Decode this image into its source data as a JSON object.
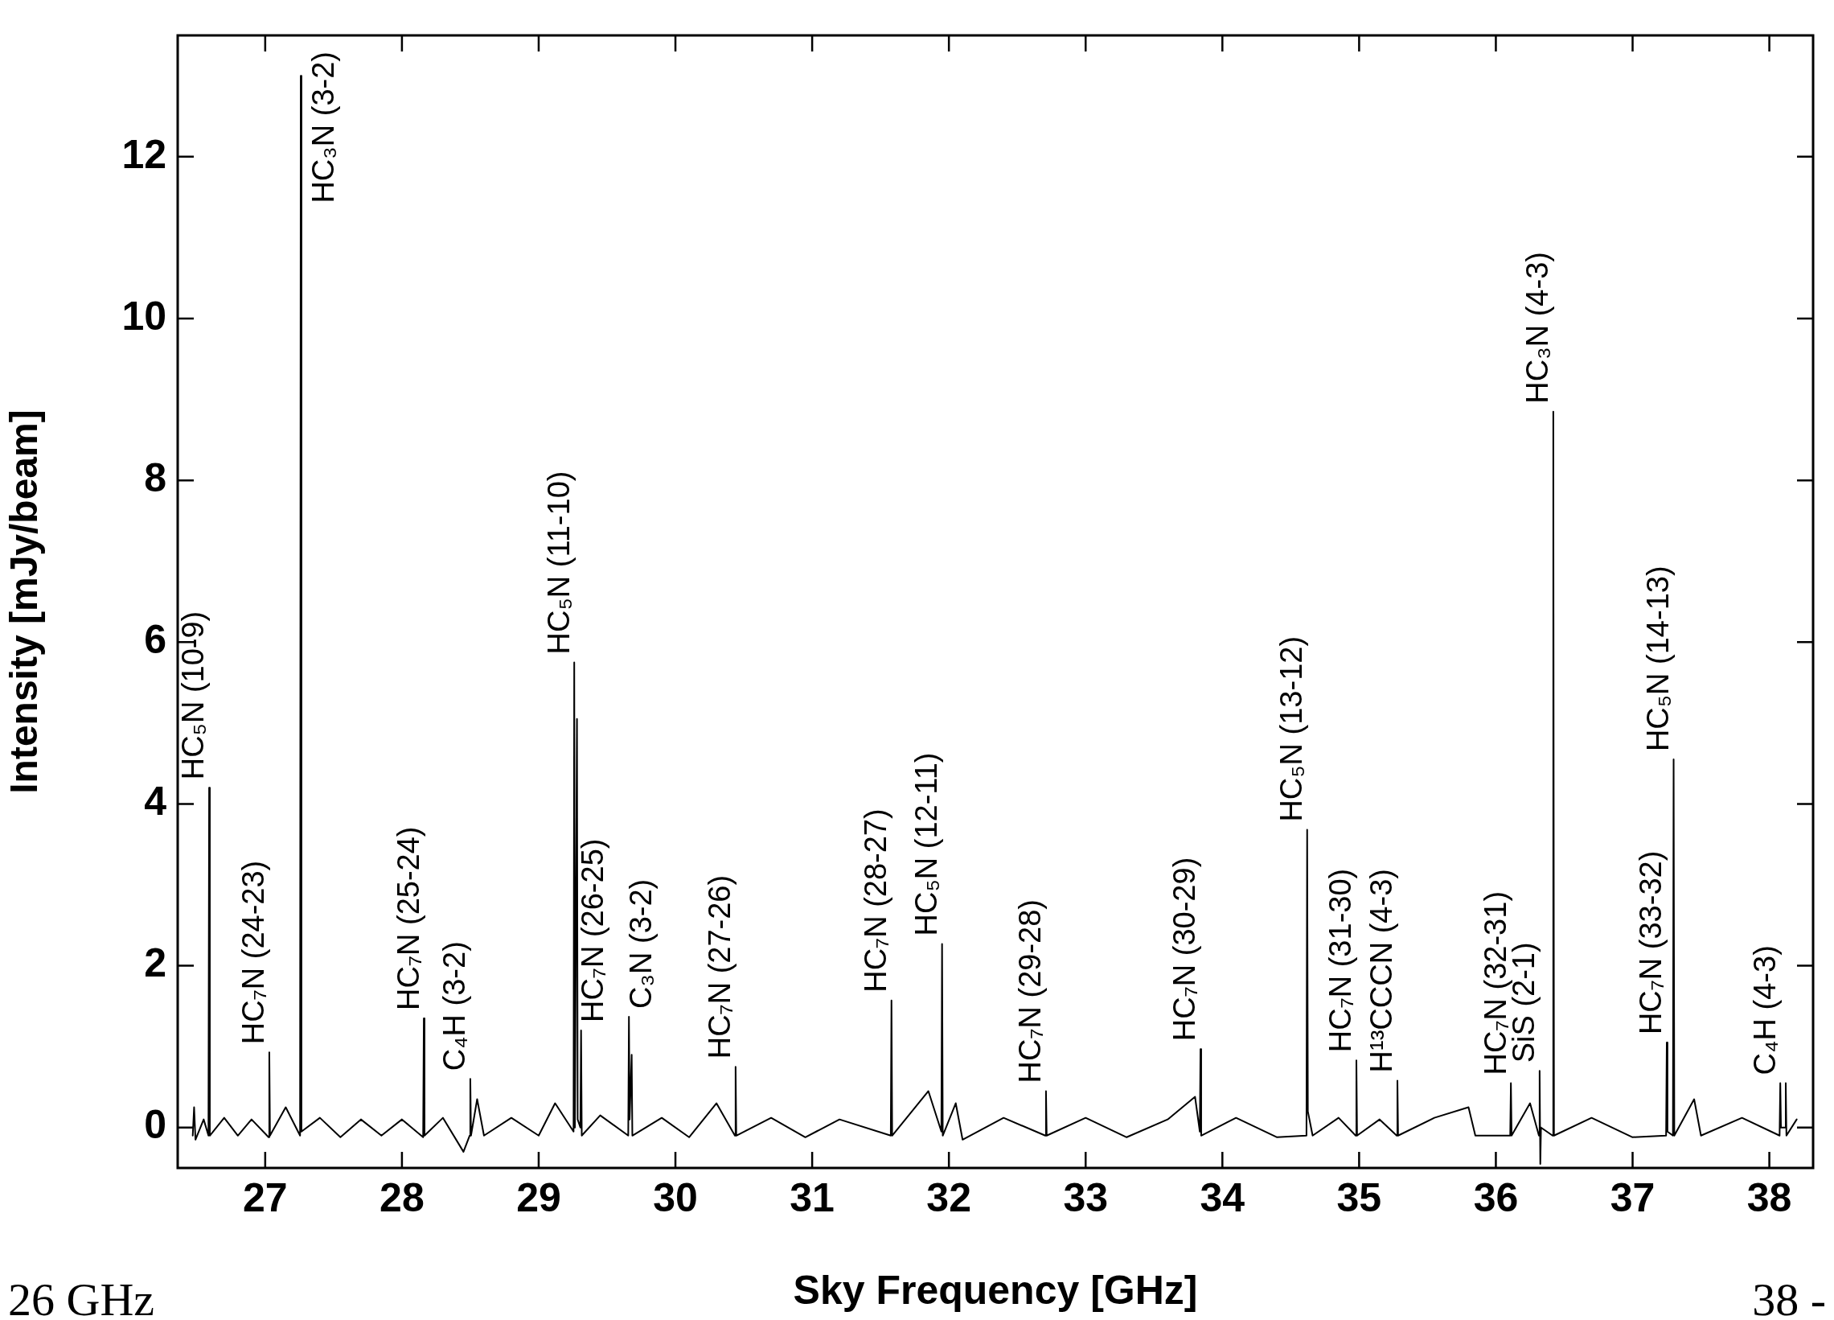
{
  "chart_data": {
    "type": "line",
    "xlabel": "Sky Frequency [GHz]",
    "ylabel": "Intensity [mJy/beam]",
    "color": "#000000",
    "xlim": [
      26.36,
      38.32
    ],
    "ylim": [
      -0.5,
      13.5
    ],
    "xticks": [
      27,
      28,
      29,
      30,
      31,
      32,
      33,
      34,
      35,
      36,
      37,
      38
    ],
    "yticks": [
      0,
      2,
      4,
      6,
      8,
      10,
      12
    ],
    "grid": false,
    "legend": false,
    "marker": "none",
    "line_style": "solid",
    "x": [
      26.47,
      26.48,
      26.49,
      26.55,
      26.585,
      26.59,
      26.595,
      26.7,
      26.8,
      26.9,
      27.025,
      27.03,
      27.035,
      27.15,
      27.255,
      27.26,
      27.265,
      27.4,
      27.55,
      27.7,
      27.85,
      28.0,
      28.155,
      28.16,
      28.165,
      28.3,
      28.45,
      28.495,
      28.5,
      28.505,
      28.55,
      28.6,
      28.8,
      29.0,
      29.12,
      29.255,
      29.26,
      29.265,
      29.28,
      29.285,
      29.305,
      29.31,
      29.315,
      29.45,
      29.655,
      29.66,
      29.665,
      29.68,
      29.685,
      29.9,
      30.1,
      30.3,
      30.435,
      30.44,
      30.445,
      30.7,
      30.95,
      31.2,
      31.575,
      31.58,
      31.585,
      31.85,
      31.945,
      31.95,
      31.955,
      32.05,
      32.1,
      32.4,
      32.705,
      32.71,
      32.715,
      33.0,
      33.3,
      33.6,
      33.8,
      33.835,
      33.84,
      33.845,
      34.1,
      34.4,
      34.615,
      34.62,
      34.625,
      34.66,
      34.85,
      34.975,
      34.98,
      34.985,
      35.15,
      35.275,
      35.28,
      35.285,
      35.55,
      35.8,
      35.85,
      36.105,
      36.11,
      36.115,
      36.25,
      36.315,
      36.32,
      36.325,
      36.33,
      36.415,
      36.42,
      36.425,
      36.7,
      37.0,
      37.245,
      37.25,
      37.255,
      37.295,
      37.3,
      37.305,
      37.45,
      37.5,
      37.8,
      38.075,
      38.08,
      38.085,
      38.115,
      38.12,
      38.125,
      38.2
    ],
    "values": [
      -0.1,
      0.25,
      -0.15,
      0.1,
      -0.1,
      4.2,
      -0.1,
      0.12,
      -0.1,
      0.1,
      -0.12,
      0.93,
      -0.1,
      0.25,
      -0.1,
      13.0,
      -0.05,
      0.12,
      -0.12,
      0.1,
      -0.1,
      0.1,
      -0.12,
      1.35,
      -0.1,
      0.12,
      -0.3,
      -0.1,
      0.6,
      -0.1,
      0.35,
      -0.1,
      0.12,
      -0.1,
      0.3,
      -0.05,
      5.75,
      0.0,
      5.05,
      0.1,
      0.0,
      1.2,
      -0.1,
      0.15,
      -0.1,
      1.37,
      0.1,
      0.9,
      -0.1,
      0.12,
      -0.12,
      0.3,
      -0.1,
      0.75,
      -0.1,
      0.12,
      -0.12,
      0.1,
      -0.1,
      1.57,
      -0.1,
      0.45,
      -0.05,
      2.27,
      -0.1,
      0.3,
      -0.15,
      0.12,
      -0.1,
      0.45,
      -0.1,
      0.12,
      -0.12,
      0.1,
      0.38,
      -0.05,
      0.97,
      -0.1,
      0.12,
      -0.12,
      -0.1,
      3.68,
      0.2,
      -0.1,
      0.12,
      -0.1,
      0.83,
      -0.1,
      0.1,
      -0.1,
      0.58,
      -0.1,
      0.12,
      0.25,
      -0.1,
      -0.1,
      0.55,
      -0.1,
      0.3,
      -0.1,
      0.7,
      -0.45,
      0.0,
      -0.1,
      8.85,
      -0.1,
      0.12,
      -0.12,
      -0.1,
      1.05,
      -0.05,
      -0.1,
      4.55,
      -0.1,
      0.35,
      -0.1,
      0.12,
      -0.1,
      0.55,
      0.0,
      0.0,
      0.55,
      -0.1,
      0.1
    ],
    "annotations": [
      {
        "text": "HC₅N (10-9)",
        "x": 26.59,
        "y": 4.2
      },
      {
        "text": "HC₇N (24-23)",
        "x": 27.03,
        "y": 0.93
      },
      {
        "text": "HC₃N (3-2)",
        "x": 27.26,
        "y": 13.0
      },
      {
        "text": "HC₇N (25-24)",
        "x": 28.16,
        "y": 1.35
      },
      {
        "text": "C₄H (3-2)",
        "x": 28.5,
        "y": 0.6
      },
      {
        "text": "HC₅N (11-10)",
        "x": 29.26,
        "y": 5.75
      },
      {
        "text": "HC₇N (26-25)",
        "x": 29.31,
        "y": 1.2
      },
      {
        "text": "C₃N (3-2)",
        "x": 29.66,
        "y": 1.37
      },
      {
        "text": "HC₇N (27-26)",
        "x": 30.44,
        "y": 0.75
      },
      {
        "text": "HC₇N (28-27)",
        "x": 31.58,
        "y": 1.57
      },
      {
        "text": "HC₅N (12-11)",
        "x": 31.95,
        "y": 2.27
      },
      {
        "text": "HC₇N (29-28)",
        "x": 32.71,
        "y": 0.45
      },
      {
        "text": "HC₇N (30-29)",
        "x": 33.84,
        "y": 0.97
      },
      {
        "text": "HC₅N (13-12)",
        "x": 34.62,
        "y": 3.68
      },
      {
        "text": "HC₇N (31-30)",
        "x": 34.98,
        "y": 0.83
      },
      {
        "text": "H¹³CCCN (4-3)",
        "x": 35.28,
        "y": 0.58
      },
      {
        "text": "HC₇N (32-31)",
        "x": 36.11,
        "y": 0.55
      },
      {
        "text": "SiS (2-1)",
        "x": 36.32,
        "y": 0.7
      },
      {
        "text": "HC₃N (4-3)",
        "x": 36.42,
        "y": 8.85
      },
      {
        "text": "HC₇N (33-32)",
        "x": 37.25,
        "y": 1.05
      },
      {
        "text": "HC₅N (14-13)",
        "x": 37.3,
        "y": 4.55
      },
      {
        "text": "C₄H (4-3)",
        "x": 38.08,
        "y": 0.55
      },
      "26 GHz",
      "38 -"
    ]
  }
}
